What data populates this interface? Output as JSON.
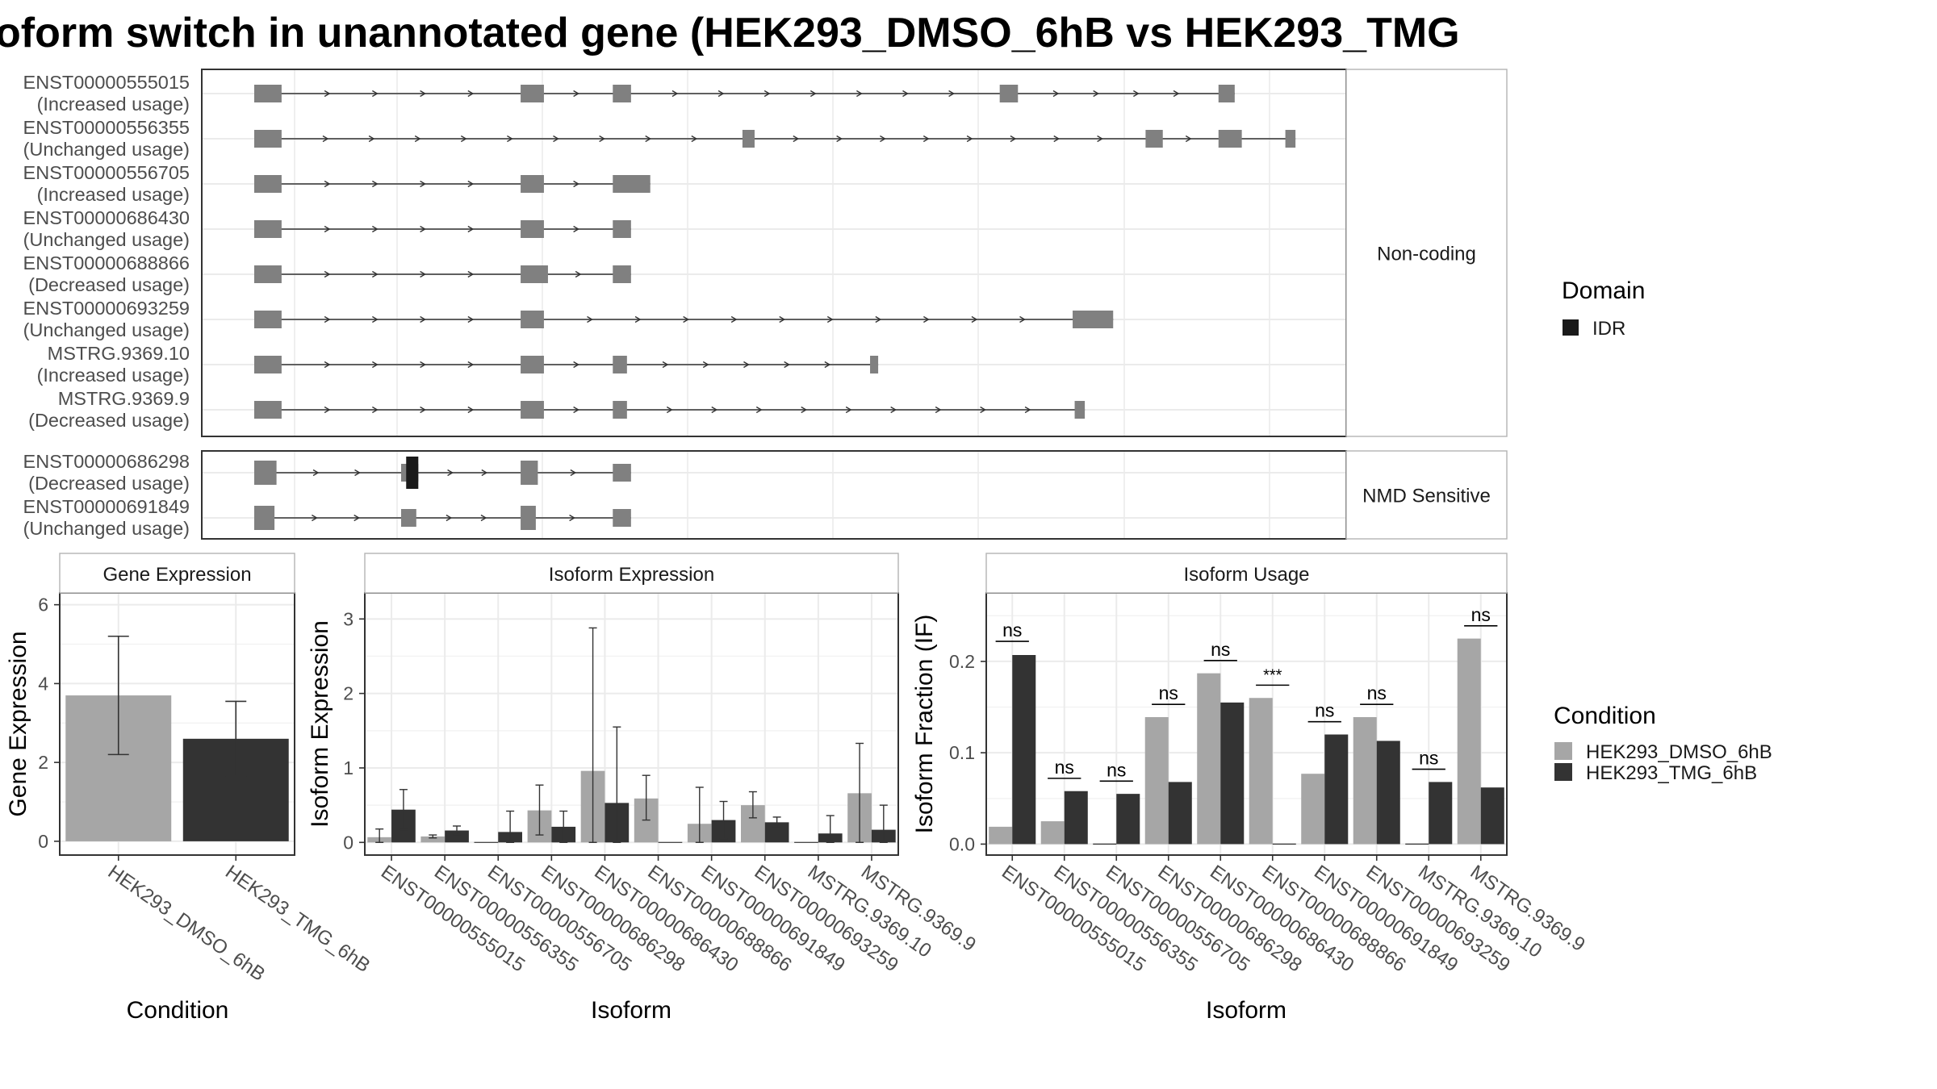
{
  "title": "oform switch in unannotated gene (HEK293_DMSO_6hB vs HEK293_TMG",
  "colors": {
    "dmso": "#a6a6a6",
    "tmg": "#333333",
    "exon": "#808080",
    "domain": "#1a1a1a",
    "grid": "#ebebeb",
    "panel_border": "#333333",
    "strip_border": "#b3b3b3"
  },
  "transcript_panels": [
    {
      "strip": "Non-coding",
      "transcripts": [
        {
          "id": "ENST00000555015",
          "usage": "(Increased usage)",
          "exons": [
            [
              0,
              27
            ],
            [
              263,
              286
            ],
            [
              354,
              372
            ],
            [
              736,
              754
            ],
            [
              952,
              968
            ]
          ]
        },
        {
          "id": "ENST00000556355",
          "usage": "(Unchanged usage)",
          "exons": [
            [
              0,
              27
            ],
            [
              482,
              494
            ],
            [
              880,
              897
            ],
            [
              952,
              975
            ],
            [
              1018,
              1028
            ]
          ]
        },
        {
          "id": "ENST00000556705",
          "usage": "(Increased usage)",
          "exons": [
            [
              0,
              27
            ],
            [
              263,
              286
            ],
            [
              354,
              391
            ]
          ]
        },
        {
          "id": "ENST00000686430",
          "usage": "(Unchanged usage)",
          "exons": [
            [
              0,
              27
            ],
            [
              263,
              286
            ],
            [
              354,
              372
            ]
          ]
        },
        {
          "id": "ENST00000688866",
          "usage": "(Decreased usage)",
          "exons": [
            [
              0,
              27
            ],
            [
              263,
              290
            ],
            [
              354,
              372
            ]
          ]
        },
        {
          "id": "ENST00000693259",
          "usage": "(Unchanged usage)",
          "exons": [
            [
              0,
              27
            ],
            [
              263,
              286
            ],
            [
              808,
              848
            ]
          ]
        },
        {
          "id": "MSTRG.9369.10",
          "usage": "(Increased usage)",
          "exons": [
            [
              0,
              27
            ],
            [
              263,
              286
            ],
            [
              354,
              368
            ],
            [
              608,
              616
            ]
          ]
        },
        {
          "id": "MSTRG.9369.9",
          "usage": "(Decreased usage)",
          "exons": [
            [
              0,
              27
            ],
            [
              263,
              286
            ],
            [
              354,
              368
            ],
            [
              810,
              820
            ]
          ]
        }
      ]
    },
    {
      "strip": "NMD Sensitive",
      "transcripts": [
        {
          "id": "ENST00000686298",
          "usage": "(Decreased usage)",
          "exons": [
            [
              0,
              22
            ],
            [
              145,
              162
            ],
            [
              263,
              280
            ],
            [
              354,
              372
            ]
          ],
          "domain": [
            150,
            162
          ]
        },
        {
          "id": "ENST00000691849",
          "usage": "(Unchanged usage)",
          "exons": [
            [
              0,
              20
            ],
            [
              145,
              160
            ],
            [
              263,
              278
            ],
            [
              354,
              372
            ]
          ]
        }
      ]
    }
  ],
  "domain_legend": {
    "title": "Domain",
    "items": [
      "IDR"
    ]
  },
  "condition_legend": {
    "title": "Condition",
    "items": [
      "HEK293_DMSO_6hB",
      "HEK293_TMG_6hB"
    ]
  },
  "chart_data": [
    {
      "type": "bar",
      "title": "Gene Expression",
      "xlabel": "Condition",
      "ylabel": "Gene Expression",
      "ylim": [
        -0.35,
        6.3
      ],
      "yticks": [
        "0",
        "2",
        "4",
        "6"
      ],
      "ytick_values": [
        0,
        2,
        4,
        6
      ],
      "categories": [
        "HEK293_DMSO_6hB",
        "HEK293_TMG_6hB"
      ],
      "values": [
        3.7,
        2.6
      ],
      "errors": [
        [
          2.2,
          5.2
        ],
        [
          1.65,
          3.55
        ]
      ],
      "grid": true
    },
    {
      "type": "bar",
      "title": "Isoform Expression",
      "xlabel": "Isoform",
      "ylabel": "Isoform Expression",
      "ylim": [
        -0.17,
        3.35
      ],
      "yticks": [
        "0",
        "1",
        "2",
        "3"
      ],
      "ytick_values": [
        0,
        1,
        2,
        3
      ],
      "categories": [
        "ENST00000555015",
        "ENST00000556355",
        "ENST00000556705",
        "ENST00000686298",
        "ENST00000686430",
        "ENST00000688866",
        "ENST00000691849",
        "ENST00000693259",
        "MSTRG.9369.10",
        "MSTRG.9369.9"
      ],
      "series": [
        {
          "name": "HEK293_DMSO_6hB",
          "values": [
            0.07,
            0.08,
            0.0,
            0.43,
            0.96,
            0.59,
            0.25,
            0.5,
            0.0,
            0.66
          ],
          "errors": [
            [
              0.0,
              0.18
            ],
            [
              0.06,
              0.1
            ],
            [
              0.0,
              0.0
            ],
            [
              0.1,
              0.77
            ],
            [
              0.0,
              2.88
            ],
            [
              0.3,
              0.9
            ],
            [
              0.0,
              0.74
            ],
            [
              0.33,
              0.68
            ],
            [
              0.0,
              0.0
            ],
            [
              0.0,
              1.33
            ]
          ]
        },
        {
          "name": "HEK293_TMG_6hB",
          "values": [
            0.44,
            0.16,
            0.14,
            0.21,
            0.53,
            0.0,
            0.3,
            0.27,
            0.12,
            0.17
          ],
          "errors": [
            [
              0.17,
              0.71
            ],
            [
              0.1,
              0.22
            ],
            [
              0.0,
              0.42
            ],
            [
              0.0,
              0.42
            ],
            [
              0.0,
              1.55
            ],
            [
              0.0,
              0.0
            ],
            [
              0.05,
              0.55
            ],
            [
              0.2,
              0.34
            ],
            [
              0.0,
              0.36
            ],
            [
              0.0,
              0.5
            ]
          ]
        }
      ],
      "grid": true
    },
    {
      "type": "bar",
      "title": "Isoform Usage",
      "xlabel": "Isoform",
      "ylabel": "Isoform Fraction (IF)",
      "ylim": [
        -0.012,
        0.275
      ],
      "yticks": [
        "0.0",
        "0.1",
        "0.2"
      ],
      "ytick_values": [
        0,
        0.1,
        0.2
      ],
      "categories": [
        "ENST00000555015",
        "ENST00000556355",
        "ENST00000556705",
        "ENST00000686298",
        "ENST00000686430",
        "ENST00000688866",
        "ENST00000691849",
        "ENST00000693259",
        "MSTRG.9369.10",
        "MSTRG.9369.9"
      ],
      "series": [
        {
          "name": "HEK293_DMSO_6hB",
          "values": [
            0.019,
            0.025,
            0.0,
            0.139,
            0.187,
            0.16,
            0.077,
            0.139,
            0.0,
            0.225
          ]
        },
        {
          "name": "HEK293_TMG_6hB",
          "values": [
            0.207,
            0.058,
            0.055,
            0.068,
            0.155,
            0.0,
            0.12,
            0.113,
            0.068,
            0.062
          ]
        }
      ],
      "annotations": [
        {
          "label": "ns",
          "value": 0.222
        },
        {
          "label": "ns",
          "value": 0.072
        },
        {
          "label": "ns",
          "value": 0.069
        },
        {
          "label": "ns",
          "value": 0.153
        },
        {
          "label": "ns",
          "value": 0.201
        },
        {
          "label": "***",
          "value": 0.174
        },
        {
          "label": "ns",
          "value": 0.134
        },
        {
          "label": "ns",
          "value": 0.153
        },
        {
          "label": "ns",
          "value": 0.082
        },
        {
          "label": "ns",
          "value": 0.239
        }
      ],
      "grid": true
    }
  ]
}
